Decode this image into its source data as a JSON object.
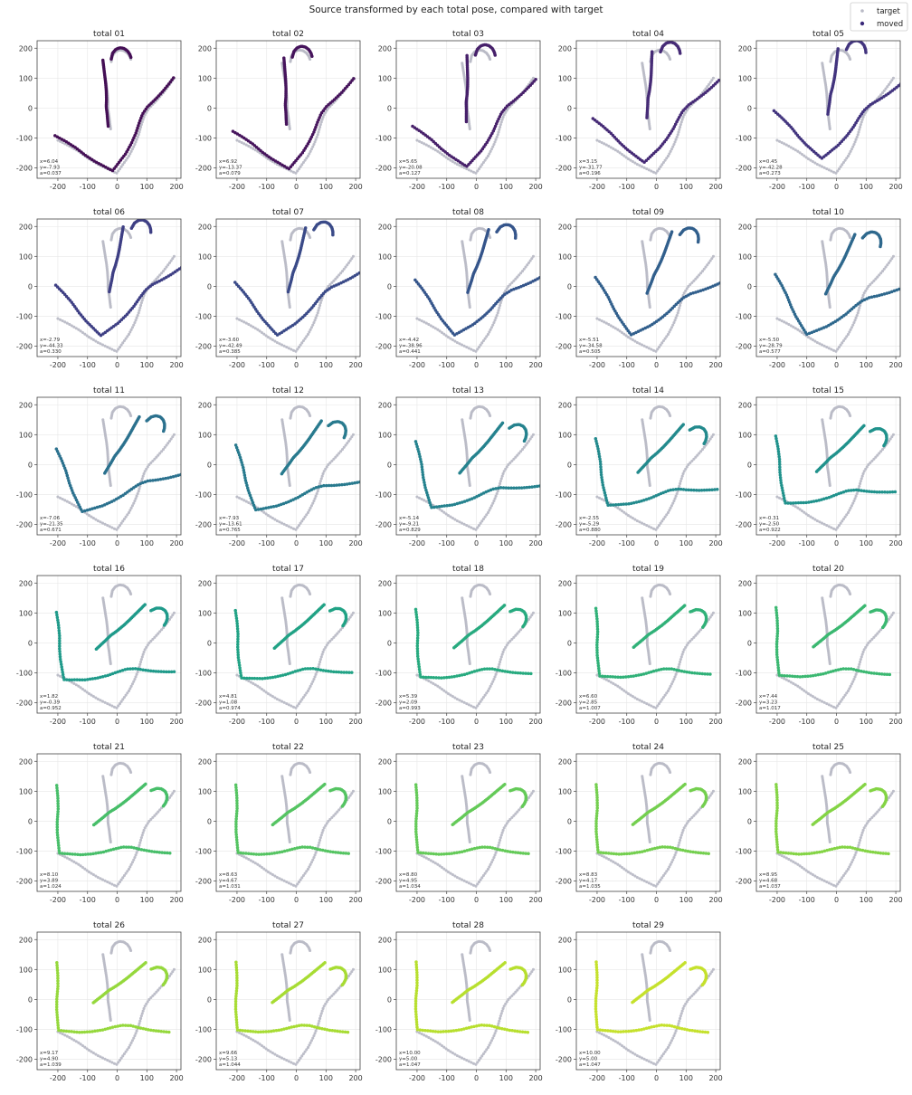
{
  "figure": {
    "title": "Source transformed by each total pose, compared with target",
    "legend": {
      "entries": [
        {
          "label": "target",
          "color": "#b9bac6"
        },
        {
          "label": "moved",
          "color": "#3b2a7a"
        }
      ],
      "placement": "top-right"
    }
  },
  "chart_data": {
    "type": "scatter",
    "grid": true,
    "xlim": [
      -270,
      215
    ],
    "ylim": [
      -235,
      225
    ],
    "xticks": [
      -200,
      -100,
      0,
      100,
      200
    ],
    "yticks": [
      -200,
      -100,
      0,
      100,
      200
    ],
    "target_color": "#b9bac6",
    "target_curves": [
      [
        [
          -200,
          -108
        ],
        [
          -165,
          -125
        ],
        [
          -130,
          -145
        ],
        [
          -95,
          -170
        ],
        [
          -65,
          -188
        ],
        [
          -40,
          -200
        ],
        [
          -15,
          -212
        ],
        [
          -2,
          -218
        ],
        [
          8,
          -205
        ],
        [
          22,
          -185
        ],
        [
          40,
          -160
        ],
        [
          58,
          -125
        ],
        [
          72,
          -90
        ],
        [
          82,
          -55
        ],
        [
          92,
          -25
        ],
        [
          108,
          0
        ],
        [
          130,
          22
        ],
        [
          155,
          50
        ],
        [
          178,
          80
        ],
        [
          192,
          100
        ]
      ],
      [
        [
          -48,
          150
        ],
        [
          -44,
          125
        ],
        [
          -40,
          100
        ],
        [
          -36,
          75
        ],
        [
          -33,
          50
        ],
        [
          -31,
          20
        ],
        [
          -31,
          -5
        ],
        [
          -27,
          -30
        ],
        [
          -24,
          -55
        ],
        [
          -22,
          -70
        ]
      ],
      [
        [
          -20,
          155
        ],
        [
          -16,
          175
        ],
        [
          -6,
          188
        ],
        [
          8,
          194
        ],
        [
          22,
          192
        ],
        [
          34,
          184
        ],
        [
          42,
          173
        ],
        [
          46,
          163
        ]
      ]
    ],
    "panels": [
      {
        "title": "total 01",
        "tx": 6.04,
        "ty": -7.93,
        "a": 0.037,
        "color": "#440f55",
        "x_label": "x=6.04",
        "y_label": "y=-7.93",
        "a_label": "a=0.037"
      },
      {
        "title": "total 02",
        "tx": 6.92,
        "ty": -13.37,
        "a": 0.079,
        "color": "#46145c",
        "x_label": "x=6.92",
        "y_label": "y=-13.37",
        "a_label": "a=0.079"
      },
      {
        "title": "total 03",
        "tx": 5.65,
        "ty": -20.08,
        "a": 0.127,
        "color": "#47206a",
        "x_label": "x=5.65",
        "y_label": "y=-20.08",
        "a_label": "a=0.127"
      },
      {
        "title": "total 04",
        "tx": 3.15,
        "ty": -31.77,
        "a": 0.196,
        "color": "#462b76",
        "x_label": "x=3.15",
        "y_label": "y=-31.77",
        "a_label": "a=0.196"
      },
      {
        "title": "total 05",
        "tx": 0.45,
        "ty": -42.28,
        "a": 0.273,
        "color": "#42347e",
        "x_label": "x=0.45",
        "y_label": "y=-42.28",
        "a_label": "a=0.273"
      },
      {
        "title": "total 06",
        "tx": -2.79,
        "ty": -44.33,
        "a": 0.33,
        "color": "#3e3f84",
        "x_label": "x=-2.79",
        "y_label": "y=-44.33",
        "a_label": "a=0.330"
      },
      {
        "title": "total 07",
        "tx": -3.6,
        "ty": -42.49,
        "a": 0.385,
        "color": "#3a4a88",
        "x_label": "x=-3.60",
        "y_label": "y=-42.49",
        "a_label": "a=0.385"
      },
      {
        "title": "total 08",
        "tx": -4.42,
        "ty": -38.96,
        "a": 0.441,
        "color": "#35558b",
        "x_label": "x=-4.42",
        "y_label": "y=-38.96",
        "a_label": "a=0.441"
      },
      {
        "title": "total 09",
        "tx": -5.51,
        "ty": -34.58,
        "a": 0.505,
        "color": "#315f8c",
        "x_label": "x=-5.51",
        "y_label": "y=-34.58",
        "a_label": "a=0.505"
      },
      {
        "title": "total 10",
        "tx": -5.5,
        "ty": -28.79,
        "a": 0.577,
        "color": "#2e688d",
        "x_label": "x=-5.50",
        "y_label": "y=-28.79",
        "a_label": "a=0.577"
      },
      {
        "title": "total 11",
        "tx": -7.06,
        "ty": -21.35,
        "a": 0.671,
        "color": "#2b718e",
        "x_label": "x=-7.06",
        "y_label": "y=-21.35",
        "a_label": "a=0.671"
      },
      {
        "title": "total 12",
        "tx": -7.93,
        "ty": -13.61,
        "a": 0.765,
        "color": "#287a8e",
        "x_label": "x=-7.93",
        "y_label": "y=-13.61",
        "a_label": "a=0.765"
      },
      {
        "title": "total 13",
        "tx": -5.14,
        "ty": -9.21,
        "a": 0.829,
        "color": "#25828e",
        "x_label": "x=-5.14",
        "y_label": "y=-9.21",
        "a_label": "a=0.829"
      },
      {
        "title": "total 14",
        "tx": -2.55,
        "ty": -5.29,
        "a": 0.88,
        "color": "#238a8d",
        "x_label": "x=-2.55",
        "y_label": "y=-5.29",
        "a_label": "a=0.880"
      },
      {
        "title": "total 15",
        "tx": -0.31,
        "ty": -2.5,
        "a": 0.922,
        "color": "#20928c",
        "x_label": "x=-0.31",
        "y_label": "y=-2.50",
        "a_label": "a=0.922"
      },
      {
        "title": "total 16",
        "tx": 1.82,
        "ty": -0.39,
        "a": 0.952,
        "color": "#1f9a8a",
        "x_label": "x=1.82",
        "y_label": "y=-0.39",
        "a_label": "a=0.952"
      },
      {
        "title": "total 17",
        "tx": 4.81,
        "ty": 1.08,
        "a": 0.974,
        "color": "#21a285",
        "x_label": "x=4.81",
        "y_label": "y=1.08",
        "a_label": "a=0.974"
      },
      {
        "title": "total 18",
        "tx": 5.39,
        "ty": 2.09,
        "a": 0.993,
        "color": "#27aa7f",
        "x_label": "x=5.39",
        "y_label": "y=2.09",
        "a_label": "a=0.993"
      },
      {
        "title": "total 19",
        "tx": 6.6,
        "ty": 2.85,
        "a": 1.007,
        "color": "#30b178",
        "x_label": "x=6.60",
        "y_label": "y=2.85",
        "a_label": "a=1.007"
      },
      {
        "title": "total 20",
        "tx": 7.44,
        "ty": 3.23,
        "a": 1.017,
        "color": "#3bb871",
        "x_label": "x=7.44",
        "y_label": "y=3.23",
        "a_label": "a=1.017"
      },
      {
        "title": "total 21",
        "tx": 8.1,
        "ty": 3.89,
        "a": 1.024,
        "color": "#47be69",
        "x_label": "x=8.10",
        "y_label": "y=3.89",
        "a_label": "a=1.024"
      },
      {
        "title": "total 22",
        "tx": 8.63,
        "ty": 4.67,
        "a": 1.031,
        "color": "#55c462",
        "x_label": "x=8.63",
        "y_label": "y=4.67",
        "a_label": "a=1.031"
      },
      {
        "title": "total 23",
        "tx": 8.8,
        "ty": 4.95,
        "a": 1.034,
        "color": "#64ca58",
        "x_label": "x=8.80",
        "y_label": "y=4.95",
        "a_label": "a=1.034"
      },
      {
        "title": "total 24",
        "tx": 8.83,
        "ty": 4.17,
        "a": 1.035,
        "color": "#74cf4f",
        "x_label": "x=8.83",
        "y_label": "y=4.17",
        "a_label": "a=1.035"
      },
      {
        "title": "total 25",
        "tx": 8.95,
        "ty": 4.68,
        "a": 1.037,
        "color": "#84d445",
        "x_label": "x=8.95",
        "y_label": "y=4.68",
        "a_label": "a=1.037"
      },
      {
        "title": "total 26",
        "tx": 9.17,
        "ty": 4.9,
        "a": 1.039,
        "color": "#95d83c",
        "x_label": "x=9.17",
        "y_label": "y=4.90",
        "a_label": "a=1.039"
      },
      {
        "title": "total 27",
        "tx": 9.66,
        "ty": 5.13,
        "a": 1.044,
        "color": "#a7dc33",
        "x_label": "x=9.66",
        "y_label": "y=5.13",
        "a_label": "a=1.044"
      },
      {
        "title": "total 28",
        "tx": 10.0,
        "ty": 5.0,
        "a": 1.047,
        "color": "#b7df2e",
        "x_label": "x=10.00",
        "y_label": "y=5.00",
        "a_label": "a=1.047"
      },
      {
        "title": "total 29",
        "tx": 10.0,
        "ty": 5.0,
        "a": 1.047,
        "color": "#c5e12c",
        "x_label": "x=10.00",
        "y_label": "y=5.00",
        "a_label": "a=1.047"
      }
    ]
  }
}
